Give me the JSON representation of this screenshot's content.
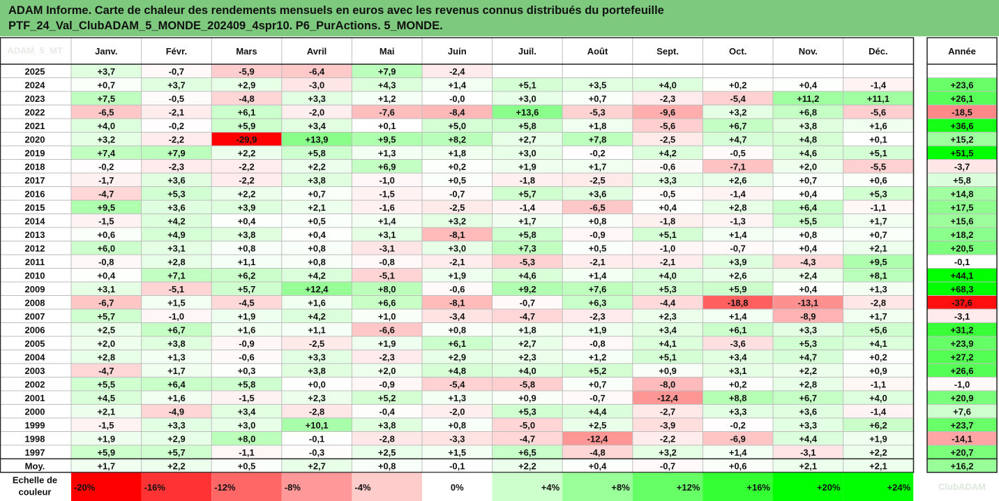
{
  "header": {
    "line1": "ADAM Informe. Carte de chaleur des rendements mensuels en euros avec les revenus connus distribués du portefeuille",
    "line2": "PTF_24_Val_ClubADAM_5_MONDE_202409_4spr10. P6_PurActions. 5_MONDE."
  },
  "chart_data": {
    "type": "heatmap",
    "columns": [
      "Janv.",
      "Févr.",
      "Mars",
      "Avril",
      "Mai",
      "Juin",
      "Juil.",
      "Août",
      "Sept.",
      "Oct.",
      "Nov.",
      "Déc."
    ],
    "year_label": "Année",
    "corner_label": "ADAM_5_MT",
    "rows": [
      {
        "year": "2025",
        "months": [
          "+3,7",
          "-0,7",
          "-5,9",
          "-6,4",
          "+7,9",
          "-2,4",
          "",
          "",
          "",
          "",
          "",
          ""
        ],
        "annual": ""
      },
      {
        "year": "2024",
        "months": [
          "+0,7",
          "+3,7",
          "+2,9",
          "-3,0",
          "+4,3",
          "+1,4",
          "+5,1",
          "+3,5",
          "+4,0",
          "+0,2",
          "+0,4",
          "-1,4"
        ],
        "annual": "+23,6"
      },
      {
        "year": "2023",
        "months": [
          "+7,5",
          "-0,5",
          "-4,8",
          "+3,3",
          "+1,2",
          "-0,0",
          "+3,0",
          "+0,7",
          "-2,3",
          "-5,4",
          "+11,2",
          "+11,1"
        ],
        "annual": "+26,1"
      },
      {
        "year": "2022",
        "months": [
          "-6,5",
          "-2,1",
          "+6,1",
          "-2,0",
          "-7,6",
          "-8,4",
          "+13,6",
          "-5,3",
          "-9,6",
          "+3,2",
          "+6,8",
          "-5,6"
        ],
        "annual": "-18,5"
      },
      {
        "year": "2021",
        "months": [
          "+4,0",
          "-0,2",
          "+5,9",
          "+3,4",
          "+0,1",
          "+5,0",
          "+5,8",
          "+1,8",
          "-5,6",
          "+6,7",
          "+3,8",
          "+1,6"
        ],
        "annual": "+36,6"
      },
      {
        "year": "2020",
        "months": [
          "+3,2",
          "-2,2",
          "-29,9",
          "+13,9",
          "+9,5",
          "+8,2",
          "+2,7",
          "+7,8",
          "-2,5",
          "+4,7",
          "+4,8",
          "+0,1"
        ],
        "annual": "+15,2"
      },
      {
        "year": "2019",
        "months": [
          "+7,4",
          "+7,9",
          "+2,2",
          "+5,8",
          "+1,3",
          "+1,8",
          "+3,0",
          "-0,2",
          "+4,2",
          "-0,5",
          "+4,6",
          "+5,1"
        ],
        "annual": "+51,5"
      },
      {
        "year": "2018",
        "months": [
          "-0,2",
          "-2,3",
          "-2,2",
          "+2,2",
          "+6,9",
          "+0,2",
          "+1,9",
          "+1,7",
          "-0,6",
          "-7,1",
          "+2,0",
          "-5,5"
        ],
        "annual": "-3,7"
      },
      {
        "year": "2017",
        "months": [
          "-1,7",
          "+3,6",
          "-2,2",
          "+3,8",
          "-1,0",
          "+0,5",
          "-1,8",
          "-2,5",
          "+3,3",
          "+2,6",
          "+0,7",
          "+0,6"
        ],
        "annual": "+5,8"
      },
      {
        "year": "2016",
        "months": [
          "-4,7",
          "+5,3",
          "+2,2",
          "+0,7",
          "-1,5",
          "-0,7",
          "+5,7",
          "+3,6",
          "-0,5",
          "-1,4",
          "+0,4",
          "+5,3"
        ],
        "annual": "+14,8"
      },
      {
        "year": "2015",
        "months": [
          "+9,5",
          "+3,6",
          "+3,9",
          "+2,1",
          "-1,6",
          "-2,5",
          "-1,4",
          "-6,5",
          "+0,4",
          "+2,8",
          "+6,4",
          "-1,1"
        ],
        "annual": "+17,5"
      },
      {
        "year": "2014",
        "months": [
          "-1,5",
          "+4,2",
          "+0,4",
          "+0,5",
          "+1,4",
          "+3,2",
          "+1,7",
          "+0,8",
          "-1,8",
          "-1,3",
          "+5,5",
          "+1,7"
        ],
        "annual": "+15,6"
      },
      {
        "year": "2013",
        "months": [
          "+0,6",
          "+4,9",
          "+3,8",
          "+0,4",
          "+3,1",
          "-8,1",
          "+5,8",
          "-0,9",
          "+5,1",
          "+1,4",
          "+0,8",
          "+0,7"
        ],
        "annual": "+18,2"
      },
      {
        "year": "2012",
        "months": [
          "+6,0",
          "+3,1",
          "+0,8",
          "+0,8",
          "-3,1",
          "+3,0",
          "+7,3",
          "+0,5",
          "-1,0",
          "-0,7",
          "+0,4",
          "+2,1"
        ],
        "annual": "+20,5"
      },
      {
        "year": "2011",
        "months": [
          "-0,8",
          "+2,8",
          "+1,1",
          "+0,8",
          "-0,8",
          "-2,1",
          "-5,3",
          "-2,1",
          "-2,1",
          "+3,9",
          "-4,3",
          "+9,5"
        ],
        "annual": "-0,1"
      },
      {
        "year": "2010",
        "months": [
          "+0,4",
          "+7,1",
          "+6,2",
          "+4,2",
          "-5,1",
          "+1,9",
          "+4,6",
          "+1,4",
          "+4,0",
          "+2,6",
          "+2,4",
          "+8,1"
        ],
        "annual": "+44,1"
      },
      {
        "year": "2009",
        "months": [
          "+3,1",
          "-5,1",
          "+5,7",
          "+12,4",
          "+8,0",
          "-0,6",
          "+9,2",
          "+7,6",
          "+5,3",
          "+5,9",
          "+0,4",
          "+1,3"
        ],
        "annual": "+68,3"
      },
      {
        "year": "2008",
        "months": [
          "-6,7",
          "+1,5",
          "-4,5",
          "+1,6",
          "+6,6",
          "-8,1",
          "-0,7",
          "+6,3",
          "-4,4",
          "-18,8",
          "-13,1",
          "-2,8"
        ],
        "annual": "-37,6"
      },
      {
        "year": "2007",
        "months": [
          "+5,7",
          "-1,0",
          "+1,9",
          "+4,2",
          "+1,0",
          "-3,4",
          "-4,7",
          "-2,3",
          "+2,3",
          "+1,4",
          "-8,9",
          "+1,7"
        ],
        "annual": "-3,1"
      },
      {
        "year": "2006",
        "months": [
          "+2,5",
          "+6,7",
          "+1,6",
          "+1,1",
          "-6,6",
          "+0,8",
          "+1,8",
          "+1,9",
          "+3,4",
          "+6,1",
          "+3,3",
          "+5,6"
        ],
        "annual": "+31,2"
      },
      {
        "year": "2005",
        "months": [
          "+2,0",
          "+3,8",
          "-0,9",
          "-2,5",
          "+1,9",
          "+6,1",
          "+2,7",
          "-0,8",
          "+4,1",
          "-3,6",
          "+5,3",
          "+4,1"
        ],
        "annual": "+23,9"
      },
      {
        "year": "2004",
        "months": [
          "+2,8",
          "+1,3",
          "-0,6",
          "+3,3",
          "-2,3",
          "+2,9",
          "+2,3",
          "+1,2",
          "+5,1",
          "+3,4",
          "+4,7",
          "+0,2"
        ],
        "annual": "+27,2"
      },
      {
        "year": "2003",
        "months": [
          "-4,7",
          "+1,7",
          "+0,3",
          "+3,8",
          "+2,0",
          "+4,8",
          "+4,0",
          "+5,2",
          "+0,9",
          "+3,1",
          "+2,2",
          "+0,9"
        ],
        "annual": "+26,6"
      },
      {
        "year": "2002",
        "months": [
          "+5,5",
          "+6,4",
          "+5,8",
          "+0,0",
          "-0,9",
          "-5,4",
          "-5,8",
          "+0,7",
          "-8,0",
          "+0,2",
          "+2,8",
          "-1,1"
        ],
        "annual": "-1,0"
      },
      {
        "year": "2001",
        "months": [
          "+4,5",
          "+1,6",
          "-1,5",
          "+2,3",
          "+5,2",
          "+1,3",
          "+0,9",
          "-0,7",
          "-12,4",
          "+8,8",
          "+6,7",
          "+4,0"
        ],
        "annual": "+20,9"
      },
      {
        "year": "2000",
        "months": [
          "+2,1",
          "-4,9",
          "+3,4",
          "-2,8",
          "-0,4",
          "-2,0",
          "+5,3",
          "+4,4",
          "-2,7",
          "+3,3",
          "+3,6",
          "-1,4"
        ],
        "annual": "+7,6"
      },
      {
        "year": "1999",
        "months": [
          "-1,5",
          "+3,3",
          "+3,0",
          "+10,1",
          "+3,8",
          "+0,8",
          "-5,0",
          "+2,5",
          "-3,9",
          "-0,2",
          "+3,3",
          "+6,2"
        ],
        "annual": "+23,7"
      },
      {
        "year": "1998",
        "months": [
          "+1,9",
          "+2,9",
          "+8,0",
          "-0,1",
          "-2,8",
          "-3,3",
          "-4,7",
          "-12,4",
          "-2,2",
          "-6,9",
          "+4,4",
          "+1,9"
        ],
        "annual": "-14,1"
      },
      {
        "year": "1997",
        "months": [
          "+5,9",
          "+5,7",
          "-1,1",
          "-0,3",
          "+2,5",
          "+1,5",
          "+6,5",
          "-4,8",
          "+3,2",
          "+1,4",
          "-3,1",
          "+2,2"
        ],
        "annual": "+20,7"
      }
    ],
    "average": {
      "label": "Moy.",
      "months": [
        "+1,7",
        "+2,2",
        "+0,5",
        "+2,7",
        "+0,8",
        "-0,1",
        "+2,2",
        "+0,4",
        "-0,7",
        "+0,6",
        "+2,1",
        "+2,1"
      ],
      "annual": "+16,2"
    },
    "scale": {
      "label": [
        "Echelle de",
        "couleur"
      ],
      "values": [
        "-20%",
        "-16%",
        "-12%",
        "-8%",
        "-4%",
        "0%",
        "+4%",
        "+8%",
        "+12%",
        "+16%",
        "+20%",
        "+24%"
      ],
      "watermark": "ClubADAM"
    },
    "colors": {
      "negative_max": "#ff0000",
      "positive_max": "#00ff00",
      "neutral": "#ffffff",
      "title_bg": "#7dc97d"
    }
  }
}
